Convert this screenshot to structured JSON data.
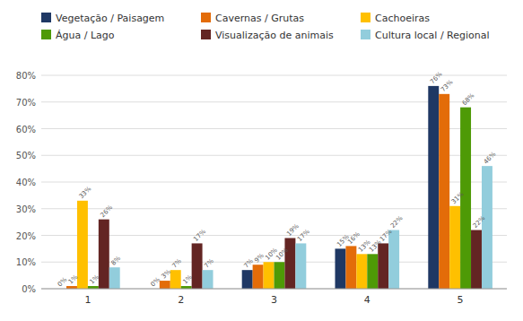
{
  "chart_data": {
    "type": "bar",
    "categories": [
      1,
      2,
      3,
      4,
      5
    ],
    "series": [
      {
        "name": "Vegetação / Paisagem",
        "color": "#1F3864",
        "values": [
          0,
          0,
          7,
          15,
          76
        ],
        "value_labels": [
          "0%",
          "0%",
          "7%",
          "15%",
          "76%"
        ]
      },
      {
        "name": "Cavernas / Grutas",
        "color": "#E36C09",
        "values": [
          1,
          3,
          9,
          16,
          73
        ],
        "value_labels": [
          "1%",
          "3%",
          "9%",
          "16%",
          "73%"
        ]
      },
      {
        "name": "Cachoeiras",
        "color": "#FFC000",
        "values": [
          33,
          7,
          10,
          13,
          31
        ],
        "value_labels": [
          "33%",
          "7%",
          "10%",
          "13%",
          "31%"
        ]
      },
      {
        "name": "Água / Lago",
        "color": "#4E9A06",
        "values": [
          1,
          1,
          10,
          13,
          68
        ],
        "value_labels": [
          "1%",
          "1%",
          "10%",
          "13%",
          "68%"
        ]
      },
      {
        "name": "Visualização de animais",
        "color": "#632523",
        "values": [
          26,
          17,
          19,
          17,
          22
        ],
        "value_labels": [
          "26%",
          "17%",
          "19%",
          "17%",
          "22%"
        ]
      },
      {
        "name": "Cultura local / Regional",
        "color": "#92CDDC",
        "values": [
          8,
          7,
          17,
          22,
          46
        ],
        "value_labels": [
          "8%",
          "7%",
          "17%",
          "22%",
          "46%"
        ]
      }
    ],
    "ylim": [
      0,
      80
    ],
    "yticks": [
      {
        "value": 0,
        "label": "0%"
      },
      {
        "value": 10,
        "label": "10%"
      },
      {
        "value": 20,
        "label": "20%"
      },
      {
        "value": 30,
        "label": "30%"
      },
      {
        "value": 40,
        "label": "40%"
      },
      {
        "value": 50,
        "label": "50%"
      },
      {
        "value": 60,
        "label": "60%"
      },
      {
        "value": 70,
        "label": "70%"
      },
      {
        "value": 80,
        "label": "80%"
      }
    ],
    "grid": true,
    "legend": "top",
    "data_labels": true
  }
}
